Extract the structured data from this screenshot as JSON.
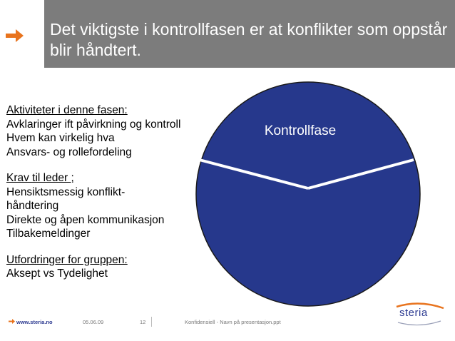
{
  "slide": {
    "title": "Det viktigste i kontrollfasen er at konflikter som oppstår blir håndtert.",
    "colors": {
      "title_bar": "#7c7c7c",
      "title_arrow": "#e8731d",
      "circle_fill": "#26388c",
      "circle_stroke": "#1a1a1a"
    },
    "icons": [
      "arrow-right-icon",
      "steria-logo"
    ]
  },
  "diagram": {
    "circle_label": "Kontrollfase"
  },
  "content": {
    "lines": [
      {
        "text": "Aktiviteter i denne fasen:",
        "heading": true
      },
      {
        "text": "Avklaringer ift påvirkning og kontroll",
        "heading": false
      },
      {
        "text": "Hvem kan virkelig hva",
        "heading": false
      },
      {
        "text": "Ansvars- og rollefordeling",
        "heading": false
      },
      {
        "text": "",
        "heading": false
      },
      {
        "text": "Krav til leder ;",
        "heading": true
      },
      {
        "text": "Hensiktsmessig konflikt-",
        "heading": false
      },
      {
        "text": "håndtering",
        "heading": false
      },
      {
        "text": "Direkte og åpen kommunikasjon",
        "heading": false
      },
      {
        "text": "Tilbakemeldinger",
        "heading": false
      },
      {
        "text": "",
        "heading": false
      },
      {
        "text": "Utfordringer for gruppen:",
        "heading": true
      },
      {
        "text": "Aksept vs Tydelighet",
        "heading": false
      }
    ]
  },
  "footer": {
    "website": "www.steria.no",
    "date": "05.06.09",
    "page": "12",
    "confidential": "Konfidensiell - Navn på presentasjon.ppt"
  },
  "logo": {
    "text": "steria"
  }
}
